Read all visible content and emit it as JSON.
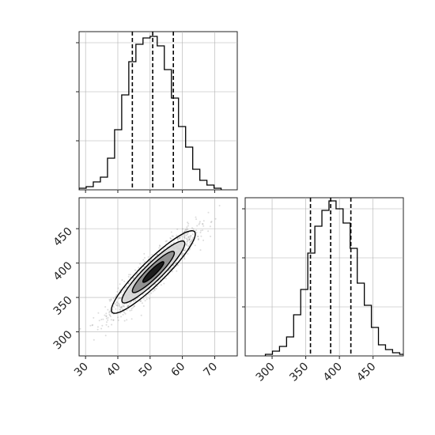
{
  "chart_data": {
    "type": "corner",
    "colors": {
      "line": "#000000",
      "grid": "#b0b0b0",
      "scatter": "#808080",
      "frame": "#222222"
    },
    "grid": true,
    "panels": [
      {
        "id": "hist-param-1",
        "type": "histogram-step",
        "xlim": [
          28,
          77
        ],
        "ylim": [
          0,
          1
        ],
        "bin_edges": [
          28,
          30.2,
          32.4,
          34.6,
          36.8,
          39,
          41.2,
          43.4,
          45.6,
          47.8,
          50,
          52.2,
          54.4,
          56.6,
          58.8,
          61,
          63.2,
          65.4,
          67.6,
          69.8,
          72
        ],
        "heights": [
          0.01,
          0.02,
          0.05,
          0.08,
          0.2,
          0.38,
          0.6,
          0.81,
          0.92,
          0.96,
          0.97,
          0.91,
          0.76,
          0.58,
          0.4,
          0.27,
          0.13,
          0.06,
          0.03,
          0.01
        ],
        "quantile_lines": [
          44.5,
          50.8,
          57.2
        ],
        "tick_values": [
          30,
          40,
          50,
          60,
          70
        ],
        "ytick_values": [
          0.31,
          0.62,
          0.93
        ]
      },
      {
        "id": "scatter-param-1-vs-2",
        "type": "scatter-contour",
        "xlim": [
          28,
          77
        ],
        "ylim": [
          265,
          495
        ],
        "xticks": [
          "30",
          "40",
          "50",
          "60",
          "70"
        ],
        "yticks": [
          "300",
          "350",
          "400",
          "450"
        ],
        "xtick_values": [
          30,
          40,
          50,
          60,
          70
        ],
        "ytick_values": [
          300,
          350,
          400,
          450
        ],
        "correlation": 0.92,
        "mean": [
          51,
          387
        ],
        "std": [
          6.5,
          30
        ],
        "levels": [
          0.5,
          1.0,
          1.5,
          2.0
        ]
      },
      {
        "id": "hist-param-2",
        "type": "histogram-step",
        "xlim": [
          260,
          495
        ],
        "ylim": [
          0,
          1
        ],
        "xticks": [
          "300",
          "350",
          "400",
          "450"
        ],
        "tick_values": [
          300,
          350,
          400,
          450
        ],
        "bin_edges": [
          290,
          300.5,
          311,
          321.5,
          332,
          342.5,
          353,
          363.5,
          374,
          384.5,
          395,
          405.5,
          416,
          426.5,
          437,
          447.5,
          458,
          468.5,
          479,
          489.5,
          500
        ],
        "heights": [
          0.01,
          0.03,
          0.06,
          0.12,
          0.26,
          0.42,
          0.65,
          0.82,
          0.92,
          0.98,
          0.93,
          0.84,
          0.68,
          0.46,
          0.32,
          0.18,
          0.07,
          0.04,
          0.02,
          0.01
        ],
        "quantile_lines": [
          357,
          387,
          417
        ],
        "ytick_values": [
          0.31,
          0.62,
          0.93
        ]
      }
    ]
  }
}
